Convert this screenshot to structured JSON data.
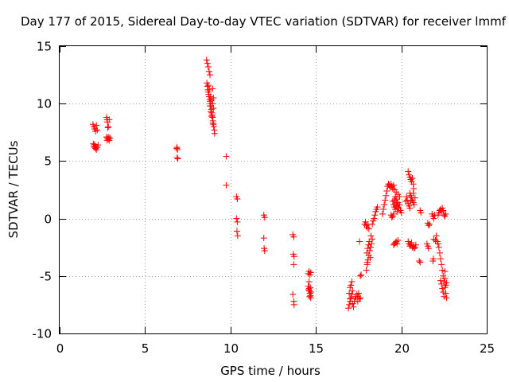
{
  "chart_data": {
    "type": "scatter",
    "title": "Day 177 of 2015, Sidereal Day-to-day VTEC variation (SDTVAR) for receiver lmmf",
    "xlabel": "GPS time / hours",
    "ylabel": "SDTVAR / TECUs",
    "xlim": [
      0,
      25
    ],
    "ylim": [
      -10,
      15
    ],
    "xticks": [
      0,
      5,
      10,
      15,
      20,
      25
    ],
    "yticks": [
      -10,
      -5,
      0,
      5,
      10,
      15
    ],
    "grid": true,
    "marker": "plus",
    "color": "#ff0000",
    "series": [
      {
        "name": "SDTVAR",
        "points": [
          [
            1.95,
            8.2
          ],
          [
            2.0,
            8.0
          ],
          [
            2.05,
            7.8
          ],
          [
            2.1,
            7.6
          ],
          [
            2.15,
            8.1
          ],
          [
            2.2,
            7.7
          ],
          [
            1.97,
            6.5
          ],
          [
            2.0,
            6.3
          ],
          [
            2.05,
            6.2
          ],
          [
            2.1,
            6.1
          ],
          [
            2.15,
            6.0
          ],
          [
            2.2,
            6.2
          ],
          [
            2.25,
            6.4
          ],
          [
            2.05,
            6.45
          ],
          [
            2.12,
            6.25
          ],
          [
            2.75,
            8.8
          ],
          [
            2.78,
            8.6
          ],
          [
            2.8,
            8.4
          ],
          [
            2.82,
            7.9
          ],
          [
            2.85,
            8.0
          ],
          [
            2.9,
            8.6
          ],
          [
            2.75,
            7.1
          ],
          [
            2.8,
            7.0
          ],
          [
            2.85,
            6.9
          ],
          [
            2.9,
            6.8
          ],
          [
            2.95,
            7.0
          ],
          [
            2.78,
            6.8
          ],
          [
            2.88,
            7.1
          ],
          [
            6.85,
            6.1
          ],
          [
            6.9,
            6.0
          ],
          [
            6.88,
            5.3
          ],
          [
            6.92,
            5.2
          ],
          [
            6.87,
            6.2
          ],
          [
            8.6,
            13.8
          ],
          [
            8.65,
            13.5
          ],
          [
            8.7,
            13.2
          ],
          [
            8.75,
            12.8
          ],
          [
            8.8,
            12.5
          ],
          [
            8.62,
            11.8
          ],
          [
            8.65,
            11.5
          ],
          [
            8.68,
            11.2
          ],
          [
            8.7,
            11.0
          ],
          [
            8.72,
            10.8
          ],
          [
            8.75,
            10.6
          ],
          [
            8.78,
            10.4
          ],
          [
            8.8,
            10.2
          ],
          [
            8.82,
            10.0
          ],
          [
            8.85,
            9.8
          ],
          [
            8.88,
            9.5
          ],
          [
            8.9,
            9.2
          ],
          [
            8.92,
            9.0
          ],
          [
            8.95,
            8.8
          ],
          [
            8.97,
            8.5
          ],
          [
            9.0,
            8.2
          ],
          [
            9.02,
            8.0
          ],
          [
            9.05,
            7.7
          ],
          [
            9.07,
            7.4
          ],
          [
            8.7,
            11.6
          ],
          [
            8.76,
            11.2
          ],
          [
            8.83,
            10.6
          ],
          [
            8.9,
            10.3
          ],
          [
            8.95,
            10.0
          ],
          [
            9.0,
            9.6
          ],
          [
            8.8,
            9.8
          ],
          [
            8.85,
            9.3
          ],
          [
            8.9,
            8.9
          ],
          [
            8.97,
            8.3
          ],
          [
            9.0,
            10.5
          ],
          [
            8.95,
            11.3
          ],
          [
            9.75,
            5.4
          ],
          [
            9.75,
            2.9
          ],
          [
            10.35,
            1.9
          ],
          [
            10.4,
            1.7
          ],
          [
            10.35,
            0.0
          ],
          [
            10.4,
            -0.3
          ],
          [
            10.38,
            -1.1
          ],
          [
            10.42,
            -1.5
          ],
          [
            11.95,
            0.3
          ],
          [
            12.0,
            0.1
          ],
          [
            11.95,
            -1.7
          ],
          [
            11.97,
            -2.6
          ],
          [
            12.0,
            -2.8
          ],
          [
            13.65,
            -1.4
          ],
          [
            13.7,
            -1.6
          ],
          [
            13.68,
            -3.1
          ],
          [
            13.72,
            -3.3
          ],
          [
            13.7,
            -4.0
          ],
          [
            13.65,
            -6.6
          ],
          [
            13.7,
            -7.2
          ],
          [
            13.72,
            -7.5
          ],
          [
            14.55,
            -4.8
          ],
          [
            14.6,
            -4.6
          ],
          [
            14.65,
            -4.9
          ],
          [
            14.7,
            -4.7
          ],
          [
            14.55,
            -5.9
          ],
          [
            14.6,
            -6.1
          ],
          [
            14.62,
            -6.3
          ],
          [
            14.65,
            -6.5
          ],
          [
            14.68,
            -6.7
          ],
          [
            14.7,
            -6.9
          ],
          [
            14.58,
            -6.2
          ],
          [
            14.63,
            -6.8
          ],
          [
            14.67,
            -6.0
          ],
          [
            14.72,
            -6.4
          ],
          [
            14.6,
            -5.5
          ],
          [
            16.9,
            -7.8
          ],
          [
            16.95,
            -7.5
          ],
          [
            17.0,
            -7.2
          ],
          [
            17.05,
            -6.9
          ],
          [
            17.1,
            -6.6
          ],
          [
            17.0,
            -6.0
          ],
          [
            17.05,
            -5.8
          ],
          [
            17.1,
            -5.5
          ],
          [
            16.95,
            -6.5
          ],
          [
            17.0,
            -7.0
          ],
          [
            17.15,
            -7.4
          ],
          [
            17.2,
            -7.7
          ],
          [
            17.25,
            -7.2
          ],
          [
            17.3,
            -6.8
          ],
          [
            17.35,
            -7.0
          ],
          [
            17.4,
            -6.6
          ],
          [
            17.45,
            -6.8
          ],
          [
            17.5,
            -6.5
          ],
          [
            17.55,
            -7.0
          ],
          [
            17.6,
            -5.0
          ],
          [
            17.65,
            -4.9
          ],
          [
            17.45,
            -7.2
          ],
          [
            17.15,
            -6.3
          ],
          [
            17.6,
            -6.9
          ],
          [
            17.55,
            -2.0
          ],
          [
            17.95,
            -4.5
          ],
          [
            18.0,
            -4.0
          ],
          [
            18.05,
            -3.6
          ],
          [
            18.1,
            -3.2
          ],
          [
            18.15,
            -2.8
          ],
          [
            18.2,
            -2.5
          ],
          [
            18.25,
            -2.2
          ],
          [
            18.3,
            -1.8
          ],
          [
            17.98,
            -3.0
          ],
          [
            18.03,
            -2.6
          ],
          [
            18.08,
            -2.3
          ],
          [
            18.12,
            -2.0
          ],
          [
            18.02,
            -3.8
          ],
          [
            18.18,
            -3.4
          ],
          [
            18.22,
            -1.5
          ],
          [
            17.85,
            -0.5
          ],
          [
            17.9,
            -0.3
          ],
          [
            17.95,
            -0.6
          ],
          [
            18.0,
            -0.8
          ],
          [
            18.05,
            -0.5
          ],
          [
            18.1,
            -0.9
          ],
          [
            18.3,
            -0.5
          ],
          [
            18.35,
            -0.2
          ],
          [
            18.4,
            0.0
          ],
          [
            18.45,
            0.3
          ],
          [
            18.5,
            0.6
          ],
          [
            18.55,
            0.8
          ],
          [
            18.6,
            1.0
          ],
          [
            18.9,
            0.4
          ],
          [
            18.95,
            0.8
          ],
          [
            19.0,
            1.2
          ],
          [
            19.05,
            1.6
          ],
          [
            19.1,
            2.0
          ],
          [
            19.15,
            2.4
          ],
          [
            19.2,
            2.8
          ],
          [
            19.25,
            3.0
          ],
          [
            19.3,
            2.9
          ],
          [
            19.35,
            2.7
          ],
          [
            19.4,
            3.0
          ],
          [
            19.45,
            2.8
          ],
          [
            19.5,
            2.6
          ],
          [
            19.55,
            2.9
          ],
          [
            19.5,
            1.5
          ],
          [
            19.55,
            1.2
          ],
          [
            19.6,
            1.0
          ],
          [
            19.65,
            0.8
          ],
          [
            19.7,
            1.1
          ],
          [
            19.75,
            1.3
          ],
          [
            19.8,
            1.0
          ],
          [
            19.85,
            0.9
          ],
          [
            19.6,
            1.6
          ],
          [
            19.7,
            1.7
          ],
          [
            19.8,
            1.4
          ],
          [
            19.9,
            1.2
          ],
          [
            19.95,
            0.7
          ],
          [
            20.0,
            0.5
          ],
          [
            19.75,
            0.6
          ],
          [
            19.65,
            1.9
          ],
          [
            19.4,
            0.3
          ],
          [
            19.45,
            0.1
          ],
          [
            19.5,
            0.2
          ],
          [
            19.55,
            0.4
          ],
          [
            19.6,
            2.5
          ],
          [
            19.7,
            2.3
          ],
          [
            19.8,
            2.1
          ],
          [
            19.9,
            1.9
          ],
          [
            19.55,
            -2.3
          ],
          [
            19.6,
            -2.2
          ],
          [
            19.65,
            -2.1
          ],
          [
            19.7,
            -2.0
          ],
          [
            19.75,
            -2.2
          ],
          [
            19.8,
            -1.9
          ],
          [
            20.4,
            4.1
          ],
          [
            20.45,
            3.8
          ],
          [
            20.5,
            3.6
          ],
          [
            20.55,
            3.4
          ],
          [
            20.6,
            3.2
          ],
          [
            20.65,
            3.5
          ],
          [
            20.7,
            3.0
          ],
          [
            20.72,
            2.6
          ],
          [
            20.5,
            2.2
          ],
          [
            20.55,
            2.0
          ],
          [
            20.6,
            1.8
          ],
          [
            20.65,
            1.6
          ],
          [
            20.7,
            1.4
          ],
          [
            20.75,
            1.2
          ],
          [
            20.8,
            1.8
          ],
          [
            20.3,
            1.9
          ],
          [
            20.35,
            1.6
          ],
          [
            20.4,
            1.3
          ],
          [
            20.45,
            1.1
          ],
          [
            20.5,
            0.9
          ],
          [
            20.25,
            1.5
          ],
          [
            20.55,
            1.5
          ],
          [
            20.7,
            2.2
          ],
          [
            20.4,
            -2.0
          ],
          [
            20.45,
            -2.2
          ],
          [
            20.5,
            -2.4
          ],
          [
            20.55,
            -2.3
          ],
          [
            20.6,
            -2.1
          ],
          [
            20.65,
            -2.5
          ],
          [
            20.7,
            -2.4
          ],
          [
            20.75,
            -2.6
          ],
          [
            20.8,
            -2.5
          ],
          [
            20.85,
            -2.3
          ],
          [
            21.1,
            0.7
          ],
          [
            21.15,
            0.5
          ],
          [
            21.05,
            -3.7
          ],
          [
            21.1,
            -3.8
          ],
          [
            21.5,
            -2.2
          ],
          [
            21.55,
            -2.4
          ],
          [
            21.6,
            -2.6
          ],
          [
            21.55,
            -0.4
          ],
          [
            21.6,
            -0.6
          ],
          [
            21.65,
            -0.5
          ],
          [
            21.8,
            0.4
          ],
          [
            21.85,
            0.2
          ],
          [
            21.9,
            0.0
          ],
          [
            21.95,
            0.3
          ],
          [
            21.9,
            -1.8
          ],
          [
            21.85,
            -3.7
          ],
          [
            21.88,
            -3.5
          ],
          [
            22.0,
            -1.9
          ],
          [
            22.05,
            -1.5
          ],
          [
            22.1,
            -2.0
          ],
          [
            22.15,
            -2.2
          ],
          [
            22.2,
            -2.5
          ],
          [
            22.25,
            -3.0
          ],
          [
            22.3,
            -3.5
          ],
          [
            22.35,
            -4.0
          ],
          [
            22.4,
            -4.5
          ],
          [
            22.45,
            -5.0
          ],
          [
            22.5,
            -5.5
          ],
          [
            22.55,
            -6.0
          ],
          [
            22.6,
            -6.5
          ],
          [
            22.65,
            -6.9
          ],
          [
            22.3,
            -5.4
          ],
          [
            22.35,
            -5.7
          ],
          [
            22.4,
            -6.1
          ],
          [
            22.45,
            -6.4
          ],
          [
            22.5,
            -6.8
          ],
          [
            22.55,
            -5.2
          ],
          [
            22.6,
            -5.8
          ],
          [
            22.55,
            -4.6
          ],
          [
            22.65,
            -5.6
          ],
          [
            22.2,
            0.5
          ],
          [
            22.25,
            0.7
          ],
          [
            22.3,
            0.8
          ],
          [
            22.35,
            0.6
          ],
          [
            22.4,
            0.9
          ],
          [
            22.45,
            0.7
          ],
          [
            22.5,
            0.3
          ],
          [
            22.55,
            0.2
          ],
          [
            22.6,
            0.4
          ],
          [
            22.15,
            0.3
          ]
        ]
      }
    ]
  }
}
